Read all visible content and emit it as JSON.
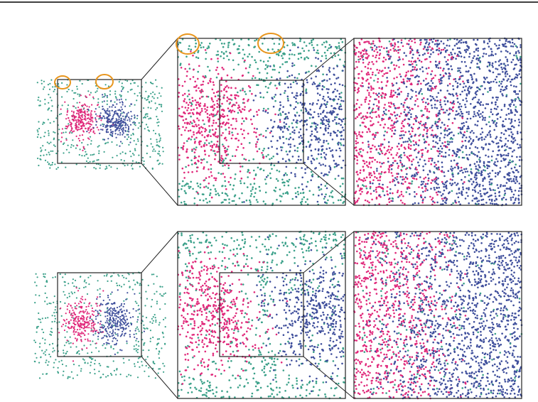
{
  "figure": {
    "description_visible_text": "",
    "rows": [
      {
        "id": "top",
        "has_highlight_circles": true
      },
      {
        "id": "bottom",
        "has_highlight_circles": false
      }
    ],
    "colors": {
      "cluster_pink": "#e0287a",
      "cluster_blue": "#3f4f9c",
      "background_teal": "#3aa089",
      "frame": "#222222",
      "highlight": "#e8961e",
      "top_rule": "#000000"
    },
    "point_types": [
      "pink-cluster",
      "blue-cluster",
      "teal-background"
    ]
  }
}
